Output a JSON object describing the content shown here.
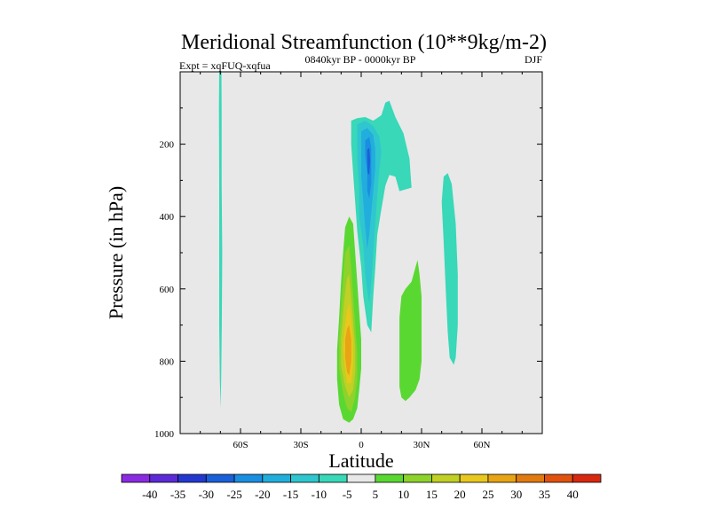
{
  "chart_data": {
    "type": "contour",
    "title": "Meridional Streamfunction (10**9kg/m-2)",
    "left_string": "Expt = xqFUQ-xqfua",
    "center_string": "0840kyr BP - 0000kyr BP",
    "right_string": "DJF",
    "xlabel": "Latitude",
    "ylabel": "Pressure (in hPa)",
    "xlim": [
      -90,
      90
    ],
    "ylim": [
      1000,
      0
    ],
    "x_ticks": [
      {
        "value": -60,
        "label": "60S"
      },
      {
        "value": -30,
        "label": "30S"
      },
      {
        "value": 0,
        "label": "0"
      },
      {
        "value": 30,
        "label": "30N"
      },
      {
        "value": 60,
        "label": "60N"
      }
    ],
    "y_ticks": [
      {
        "value": 200,
        "label": "200"
      },
      {
        "value": 400,
        "label": "400"
      },
      {
        "value": 600,
        "label": "600"
      },
      {
        "value": 800,
        "label": "800"
      },
      {
        "value": 1000,
        "label": "1000"
      }
    ],
    "background_color": "#e8e8e8",
    "levels": [
      -40,
      -35,
      -30,
      -25,
      -20,
      -15,
      -10,
      -5,
      5,
      10,
      15,
      20,
      25,
      30,
      35,
      40
    ],
    "level_labels": [
      "-40",
      "-35",
      "-30",
      "-25",
      "-20",
      "-15",
      "-10",
      "-5",
      "5",
      "10",
      "15",
      "20",
      "25",
      "30",
      "35",
      "40"
    ],
    "colors": [
      "#8a2be2",
      "#5c2ad6",
      "#2438d0",
      "#1a60d8",
      "#1a8ee0",
      "#22aedd",
      "#30c6cf",
      "#38d8b8",
      "#e8e8e8",
      "#5ad832",
      "#8ed22c",
      "#c0d024",
      "#e8c81c",
      "#e8a414",
      "#e27a12",
      "#e0520e",
      "#d82810"
    ],
    "contour_regions": [
      {
        "name": "sh-midlat-negative-band",
        "color": "#38d8b8",
        "points": [
          [
            -70.6,
            0
          ],
          [
            -69.5,
            0
          ],
          [
            -69.4,
            100
          ],
          [
            -69.4,
            300
          ],
          [
            -69.1,
            500
          ],
          [
            -69.3,
            700
          ],
          [
            -69.6,
            850
          ],
          [
            -69.9,
            930
          ],
          [
            -70.3,
            850
          ],
          [
            -70.6,
            700
          ],
          [
            -70.6,
            300
          ],
          [
            -70.7,
            100
          ]
        ]
      },
      {
        "name": "equatorial-neg-outer",
        "color": "#38d8b8",
        "points": [
          [
            -5,
            135
          ],
          [
            -2,
            128
          ],
          [
            2,
            125
          ],
          [
            6,
            135
          ],
          [
            10,
            120
          ],
          [
            12,
            85
          ],
          [
            14,
            80
          ],
          [
            17,
            125
          ],
          [
            21,
            170
          ],
          [
            24,
            240
          ],
          [
            25,
            320
          ],
          [
            19,
            330
          ],
          [
            17,
            290
          ],
          [
            14,
            285
          ],
          [
            12,
            315
          ],
          [
            10,
            380
          ],
          [
            8,
            450
          ],
          [
            7,
            540
          ],
          [
            6,
            620
          ],
          [
            5,
            720
          ],
          [
            3,
            700
          ],
          [
            1,
            620
          ],
          [
            0,
            540
          ],
          [
            -2,
            440
          ],
          [
            -3,
            360
          ],
          [
            -4,
            280
          ],
          [
            -5,
            200
          ]
        ]
      },
      {
        "name": "equatorial-neg-10",
        "color": "#30c6cf",
        "points": [
          [
            -2,
            145
          ],
          [
            2,
            135
          ],
          [
            6,
            150
          ],
          [
            9,
            180
          ],
          [
            10,
            220
          ],
          [
            9,
            270
          ],
          [
            8,
            340
          ],
          [
            7,
            420
          ],
          [
            6,
            500
          ],
          [
            5,
            580
          ],
          [
            4,
            640
          ],
          [
            2,
            560
          ],
          [
            1,
            480
          ],
          [
            -1,
            400
          ],
          [
            -1,
            320
          ],
          [
            -2,
            240
          ]
        ]
      },
      {
        "name": "equatorial-neg-15",
        "color": "#22aedd",
        "points": [
          [
            0,
            165
          ],
          [
            3,
            155
          ],
          [
            6,
            175
          ],
          [
            7,
            215
          ],
          [
            7,
            265
          ],
          [
            6,
            330
          ],
          [
            5,
            390
          ],
          [
            4,
            450
          ],
          [
            3,
            490
          ],
          [
            2,
            430
          ],
          [
            1,
            360
          ],
          [
            0,
            290
          ],
          [
            0,
            220
          ]
        ]
      },
      {
        "name": "equatorial-neg-20",
        "color": "#1a8ee0",
        "points": [
          [
            2,
            190
          ],
          [
            4,
            180
          ],
          [
            5,
            210
          ],
          [
            5,
            260
          ],
          [
            5,
            310
          ],
          [
            4,
            350
          ],
          [
            3,
            330
          ],
          [
            3,
            280
          ],
          [
            2,
            230
          ]
        ]
      },
      {
        "name": "equatorial-neg-25",
        "color": "#1a60d8",
        "points": [
          [
            3,
            215
          ],
          [
            4,
            210
          ],
          [
            4.5,
            245
          ],
          [
            4,
            285
          ],
          [
            3.2,
            280
          ],
          [
            3,
            245
          ]
        ]
      },
      {
        "name": "nh-neg-cell",
        "color": "#38d8b8",
        "points": [
          [
            41,
            290
          ],
          [
            43,
            280
          ],
          [
            45,
            310
          ],
          [
            47,
            420
          ],
          [
            48,
            560
          ],
          [
            48,
            700
          ],
          [
            47,
            790
          ],
          [
            46,
            810
          ],
          [
            44,
            790
          ],
          [
            43,
            720
          ],
          [
            42,
            600
          ],
          [
            41,
            470
          ],
          [
            40,
            360
          ]
        ]
      },
      {
        "name": "equatorial-pos-5",
        "color": "#5ad832",
        "points": [
          [
            -8,
            430
          ],
          [
            -6,
            400
          ],
          [
            -4,
            420
          ],
          [
            -3,
            500
          ],
          [
            -2,
            580
          ],
          [
            -1,
            660
          ],
          [
            0,
            740
          ],
          [
            0,
            820
          ],
          [
            -1,
            880
          ],
          [
            -2,
            930
          ],
          [
            -4,
            960
          ],
          [
            -6,
            970
          ],
          [
            -9,
            960
          ],
          [
            -11,
            920
          ],
          [
            -12,
            850
          ],
          [
            -12,
            770
          ],
          [
            -11,
            680
          ],
          [
            -10,
            580
          ],
          [
            -9,
            500
          ]
        ]
      },
      {
        "name": "equatorial-pos-10",
        "color": "#8ed22c",
        "points": [
          [
            -8,
            500
          ],
          [
            -6,
            480
          ],
          [
            -5,
            540
          ],
          [
            -4,
            620
          ],
          [
            -3,
            700
          ],
          [
            -2,
            780
          ],
          [
            -2,
            850
          ],
          [
            -3,
            900
          ],
          [
            -5,
            940
          ],
          [
            -7,
            930
          ],
          [
            -9,
            890
          ],
          [
            -11,
            820
          ],
          [
            -11,
            740
          ],
          [
            -10,
            660
          ],
          [
            -9,
            580
          ]
        ]
      },
      {
        "name": "equatorial-pos-15",
        "color": "#c0d024",
        "points": [
          [
            -7,
            570
          ],
          [
            -6,
            560
          ],
          [
            -5,
            620
          ],
          [
            -4,
            690
          ],
          [
            -3,
            760
          ],
          [
            -3,
            830
          ],
          [
            -4,
            880
          ],
          [
            -6,
            900
          ],
          [
            -8,
            870
          ],
          [
            -10,
            810
          ],
          [
            -10,
            740
          ],
          [
            -9,
            670
          ],
          [
            -8,
            610
          ]
        ]
      },
      {
        "name": "equatorial-pos-20",
        "color": "#e8c81c",
        "points": [
          [
            -6,
            640
          ],
          [
            -5,
            680
          ],
          [
            -4,
            740
          ],
          [
            -4,
            810
          ],
          [
            -5,
            860
          ],
          [
            -7,
            860
          ],
          [
            -8,
            820
          ],
          [
            -9,
            760
          ],
          [
            -8,
            700
          ],
          [
            -7,
            660
          ]
        ]
      },
      {
        "name": "equatorial-pos-25",
        "color": "#e8a414",
        "points": [
          [
            -6,
            700
          ],
          [
            -5,
            740
          ],
          [
            -5,
            800
          ],
          [
            -6,
            840
          ],
          [
            -7,
            830
          ],
          [
            -8,
            790
          ],
          [
            -8,
            740
          ],
          [
            -7,
            710
          ]
        ]
      },
      {
        "name": "nh-pos-cell",
        "color": "#5ad832",
        "points": [
          [
            25,
            580
          ],
          [
            27,
            540
          ],
          [
            28,
            520
          ],
          [
            29,
            560
          ],
          [
            30,
            620
          ],
          [
            30,
            720
          ],
          [
            30,
            800
          ],
          [
            29,
            850
          ],
          [
            27,
            880
          ],
          [
            24,
            900
          ],
          [
            22,
            910
          ],
          [
            20,
            900
          ],
          [
            19,
            870
          ],
          [
            19,
            780
          ],
          [
            19,
            680
          ],
          [
            20,
            620
          ],
          [
            22,
            600
          ]
        ]
      }
    ]
  }
}
